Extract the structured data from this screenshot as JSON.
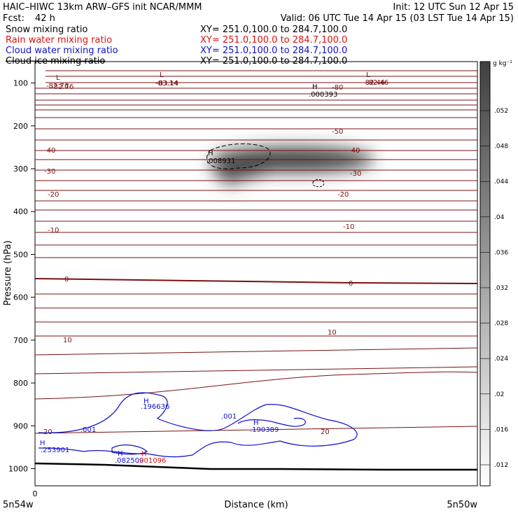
{
  "header": {
    "line1_left": "HAIC–HIWC 13km ARW–GFS init   NCAR/MMM",
    "line1_right": "Init: 12 UTC Sun 12 Apr 15",
    "fcst_label": "Fcst:",
    "fcst_value": "42 h",
    "valid": "Valid: 06 UTC Tue 14 Apr 15 (03 LST Tue 14 Apr 15)",
    "fields": [
      {
        "name": "Snow mixing ratio",
        "xy": "XY= 251.0,100.0 to 284.7,100.0",
        "color": "#000000"
      },
      {
        "name": "Rain water mixing ratio",
        "xy": "XY= 251.0,100.0 to 284.7,100.0",
        "color": "#e01010"
      },
      {
        "name": "Cloud water mixing ratio",
        "xy": "XY= 251.0,100.0 to 284.7,100.0",
        "color": "#1010d0"
      },
      {
        "name": "Cloud ice mixing ratio",
        "xy": "XY= 251.0,100.0 to 284.7,100.0",
        "color": "#000000"
      }
    ]
  },
  "chart_data": {
    "type": "heatmap",
    "ylabel": "Pressure (hPa)",
    "xlabel": "Distance (km)",
    "y_ticks": [
      100,
      200,
      300,
      400,
      500,
      600,
      700,
      800,
      900,
      1000
    ],
    "ylim": [
      1040,
      50
    ],
    "x_tick_label": "0",
    "x_left_label": "5n54w",
    "x_right_label": "5n50w",
    "colorbar": {
      "unit": "g kg⁻¹",
      "ticks": [
        ".052",
        ".048",
        ".044",
        ".04",
        ".036",
        ".032",
        ".028",
        ".024",
        ".02",
        ".016",
        ".012"
      ]
    },
    "temperature_labels": [
      "-82.76",
      "-83.14",
      "-80",
      "-82.46",
      "-50",
      "-40",
      "-40",
      "-30",
      "-30",
      "-20",
      "-20",
      "-10",
      "-10",
      "0",
      "0",
      "10",
      "10",
      "20",
      "20"
    ],
    "extrema_labels": [
      {
        "mark": "L",
        "value": "-82.76"
      },
      {
        "mark": "L",
        "value": "-83.14"
      },
      {
        "mark": "L",
        "value": "-82.46"
      },
      {
        "mark": "H",
        "value": ".000393"
      },
      {
        "mark": "H",
        "value": ".008931"
      },
      {
        "mark": "H",
        "value": ".196636"
      },
      {
        "mark": "H",
        "value": ".190389"
      },
      {
        "mark": "H",
        "value": ".253901"
      },
      {
        "mark": "H",
        "value": ".082509"
      },
      {
        "mark": "H",
        "value": ".001096"
      }
    ],
    "cloud_water_labels": [
      ".001",
      ".001"
    ],
    "colors": {
      "temperature": "#7a1010",
      "cloud_water": "#1010d0",
      "rain": "#e01010",
      "snow_shading": "#3a3a3a",
      "ice_contour": "#000000"
    }
  }
}
